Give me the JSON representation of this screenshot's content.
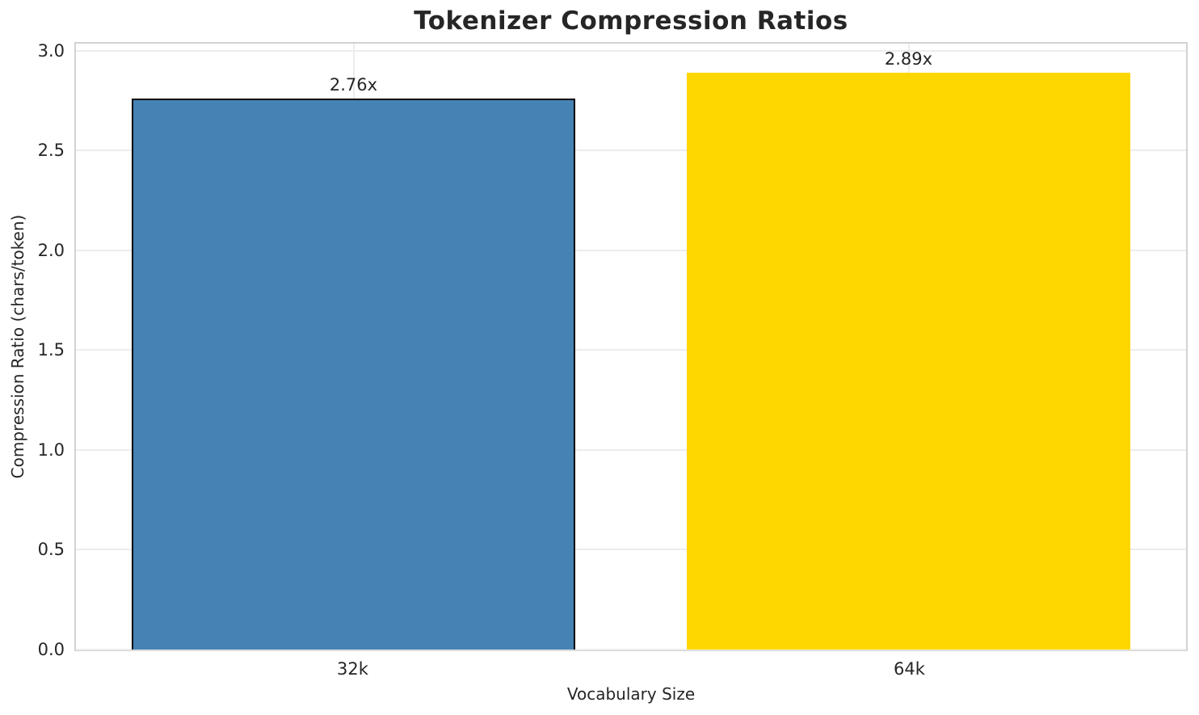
{
  "chart_data": {
    "type": "bar",
    "title": "Tokenizer Compression Ratios",
    "xlabel": "Vocabulary Size",
    "ylabel": "Compression Ratio (chars/token)",
    "categories": [
      "32k",
      "64k"
    ],
    "values": [
      2.76,
      2.89
    ],
    "bar_labels": [
      "2.76x",
      "2.89x"
    ],
    "bar_colors": [
      "#4682B4",
      "#FFD700"
    ],
    "bar_edge_colors": [
      "#000000",
      "none"
    ],
    "ylim": [
      0,
      3.0345
    ],
    "yticks": [
      "0.0",
      "0.5",
      "1.0",
      "1.5",
      "2.0",
      "2.5",
      "3.0"
    ],
    "ytick_values": [
      0.0,
      0.5,
      1.0,
      1.5,
      2.0,
      2.5,
      3.0
    ],
    "grid": true,
    "legend_position": "none",
    "background_color": "#ffffff",
    "text_color": "#262626",
    "grid_color": "#ececec",
    "spine_color": "#d2d2d2"
  }
}
